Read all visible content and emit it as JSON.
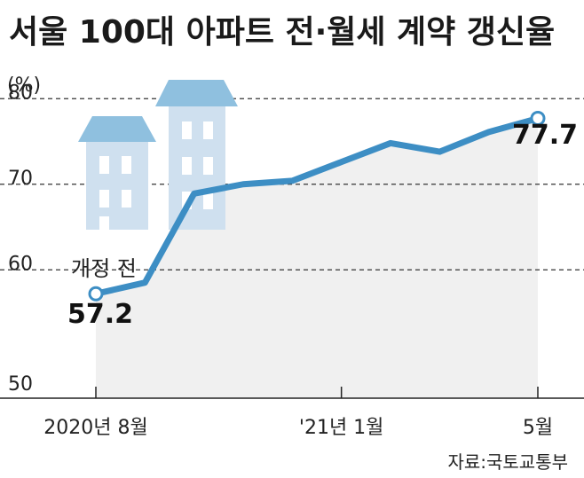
{
  "chart_data": {
    "type": "line",
    "title": "서울 100대 아파트 전·월세 계약 갱신율",
    "unit_label": "(%)",
    "y_ticks": [
      50,
      60,
      70,
      80
    ],
    "ylim": [
      45,
      85
    ],
    "grid": "dashed at 60, 70, 80",
    "x_ticks": [
      {
        "index": 0,
        "label": "2020년 8월"
      },
      {
        "index": 5,
        "label": "'21년 1월"
      },
      {
        "index": 9,
        "label": "5월"
      }
    ],
    "series": [
      {
        "x": [
          "2020-08",
          "2020-09",
          "2020-10",
          "2020-11",
          "2020-12",
          "2021-01",
          "2021-02",
          "2021-03",
          "2021-04",
          "2021-05"
        ],
        "values": [
          57.2,
          58.5,
          68.9,
          70.0,
          70.4,
          72.6,
          74.8,
          73.8,
          76.1,
          77.7
        ],
        "color": "#3d8ec4"
      }
    ],
    "annotations": {
      "start_note": "개정 전",
      "start_value": "57.2",
      "end_value": "77.7"
    },
    "source": "자료:국토교통부"
  },
  "colors": {
    "line": "#3d8ec4",
    "area": "#f0f0f0",
    "grid": "#333333",
    "building_roof": "#8fc0df",
    "building_body": "#cfe0ef",
    "building_window": "#ffffff"
  },
  "decorations": [
    "apartment-buildings-icon"
  ]
}
